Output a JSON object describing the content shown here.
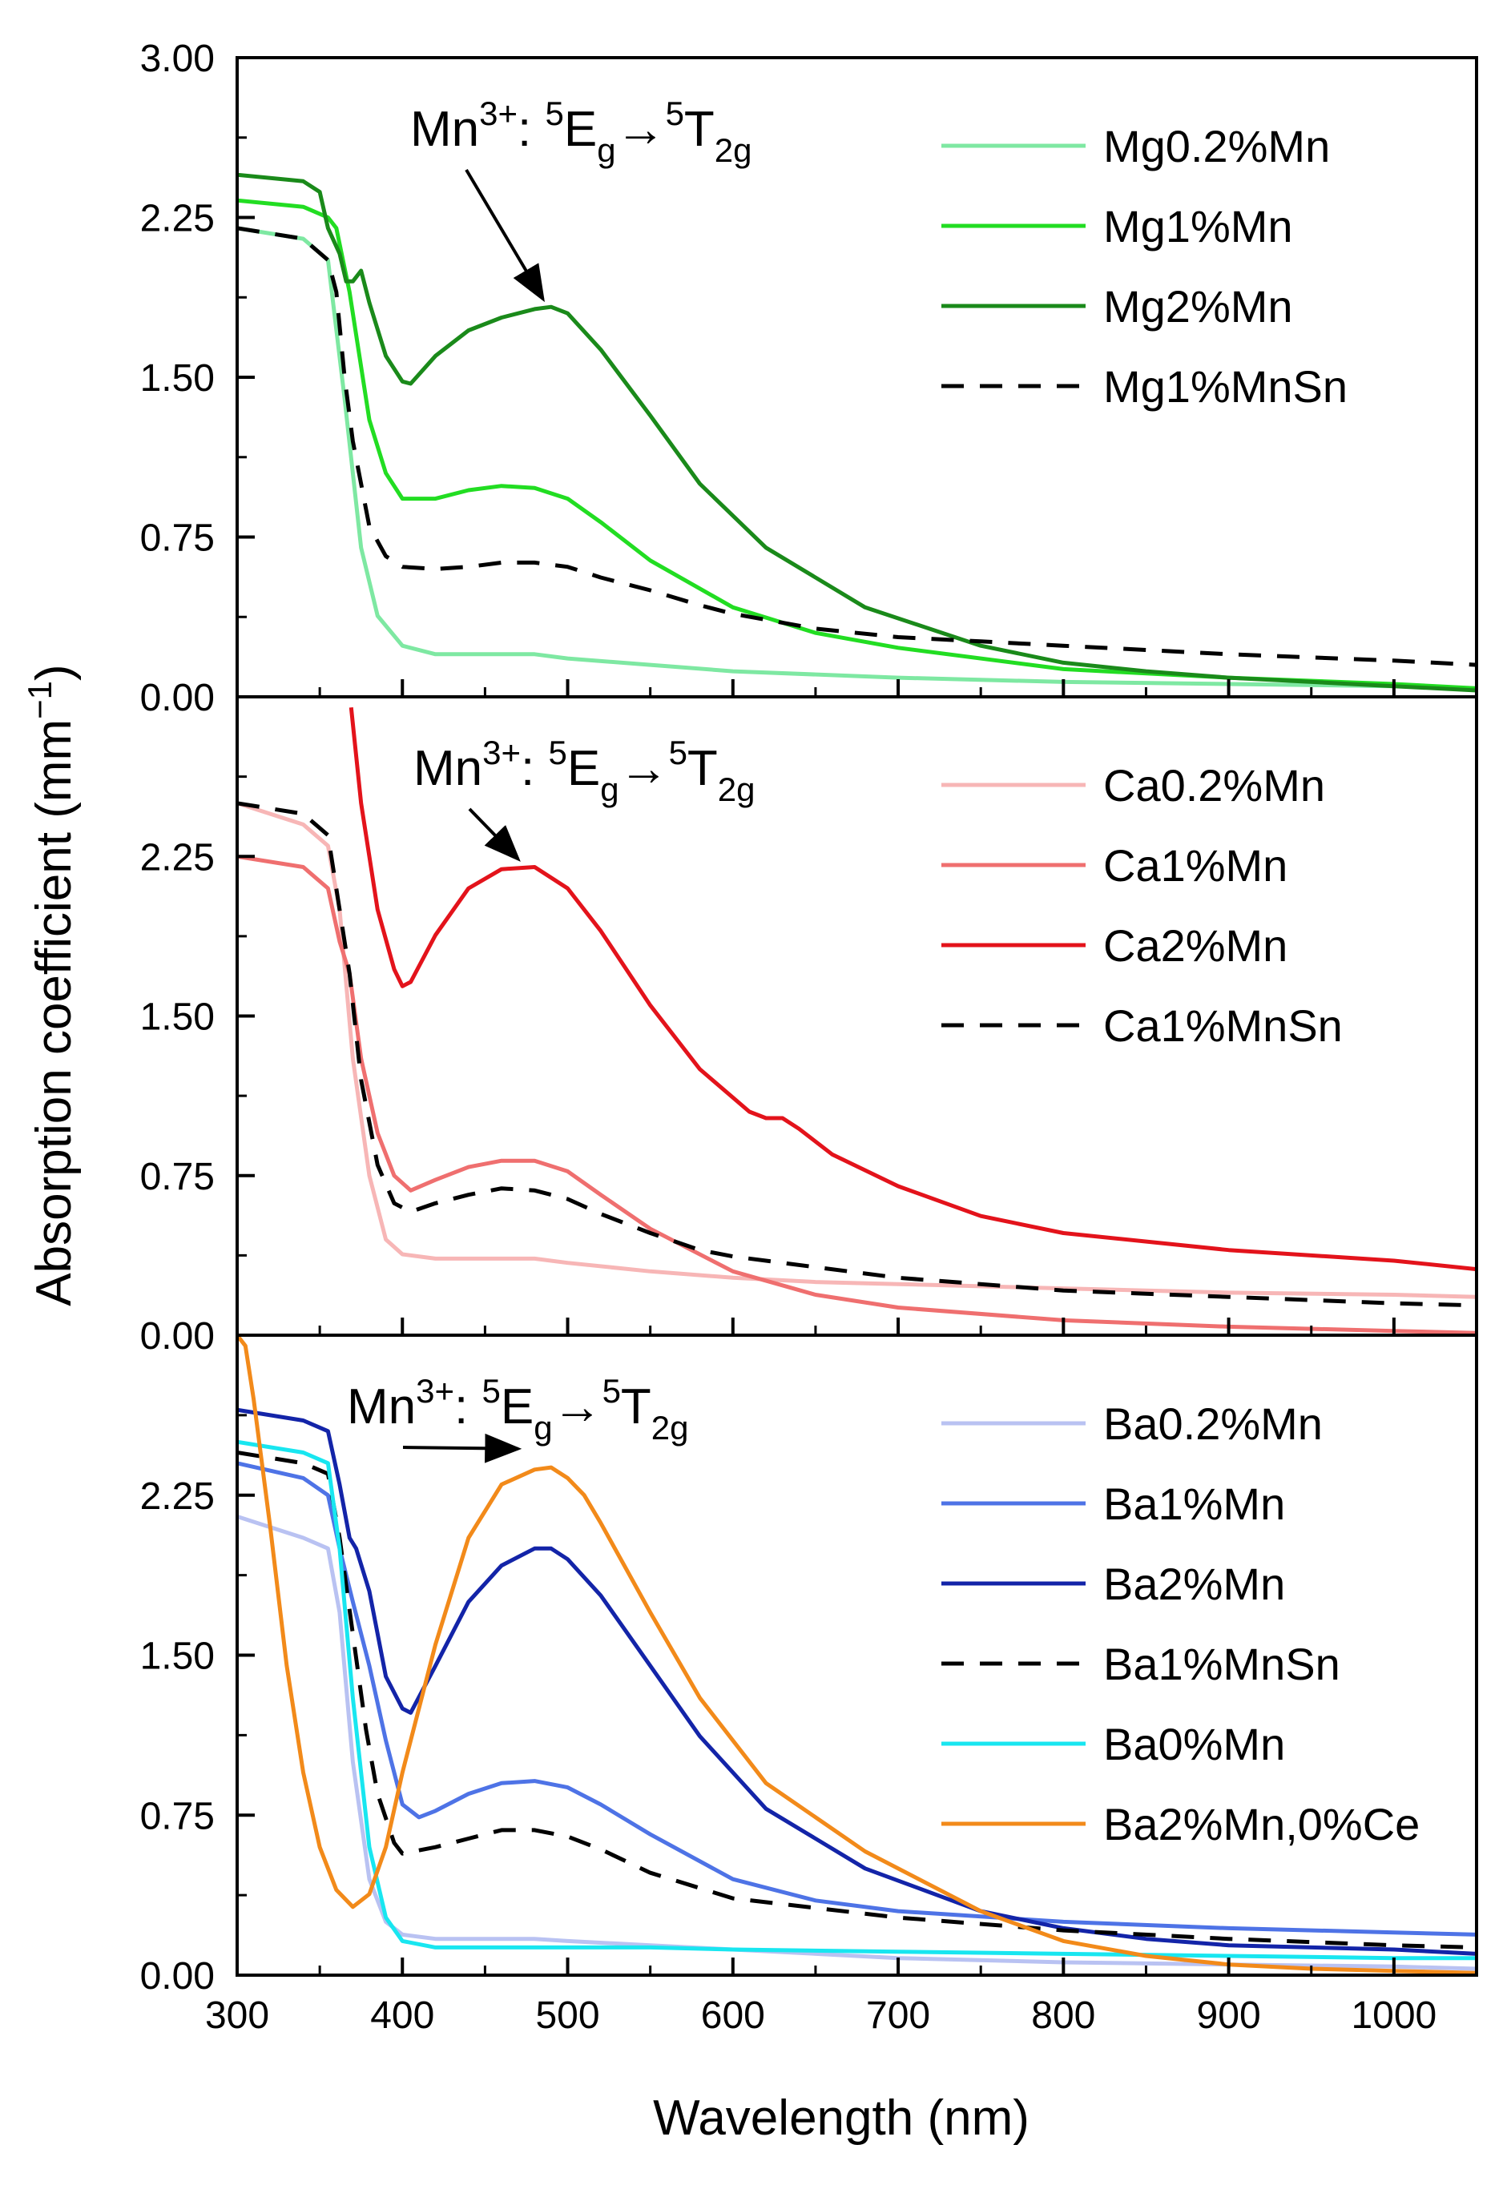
{
  "chart_data": {
    "type": "line",
    "xlabel": "Wavelength (nm)",
    "ylabel": "Absorption coefficient (mm",
    "ylabel_sup": "−1",
    "ylabel_close": ")",
    "xlim": [
      300,
      1050
    ],
    "x_ticks": [
      300,
      400,
      500,
      600,
      700,
      800,
      900,
      1000
    ],
    "x_tick_labels": [
      "300",
      "400",
      "500",
      "600",
      "700",
      "800",
      "900",
      "1000"
    ],
    "y_ticks": [
      0,
      0.75,
      1.5,
      2.25,
      3.0
    ],
    "annotation": {
      "prefix": "Mn",
      "charge": "3+",
      "colon": ": ",
      "state1_sup": "5",
      "state1": "E",
      "state1_sub": "g",
      "arrow": "→",
      "state2_sup": "5",
      "state2": "T",
      "state2_sub": "2g"
    },
    "panels": [
      {
        "id": "mg",
        "ylim": [
          0,
          3.0
        ],
        "y_tick_labels": [
          "0.00",
          "0.75",
          "1.50",
          "2.25",
          "3.00"
        ],
        "annotation_arrow_target": [
          485,
          1.83
        ],
        "series": [
          {
            "name": "Mg0.2%Mn",
            "color": "#7ee8a2",
            "dash": false,
            "x": [
              300,
              340,
              355,
              365,
              375,
              385,
              400,
              420,
              450,
              480,
              500,
              550,
              600,
              700,
              800,
              900,
              1000,
              1050
            ],
            "y": [
              2.2,
              2.15,
              2.05,
              1.4,
              0.7,
              0.38,
              0.24,
              0.2,
              0.2,
              0.2,
              0.18,
              0.15,
              0.12,
              0.09,
              0.07,
              0.06,
              0.05,
              0.04
            ]
          },
          {
            "name": "Mg1%Mn",
            "color": "#22dd22",
            "dash": false,
            "x": [
              300,
              340,
              355,
              360,
              368,
              372,
              380,
              390,
              400,
              420,
              440,
              460,
              480,
              500,
              520,
              550,
              600,
              650,
              700,
              800,
              900,
              1000,
              1050
            ],
            "y": [
              2.33,
              2.3,
              2.25,
              2.2,
              1.9,
              1.7,
              1.3,
              1.05,
              0.93,
              0.93,
              0.97,
              0.99,
              0.98,
              0.93,
              0.82,
              0.64,
              0.42,
              0.3,
              0.23,
              0.13,
              0.09,
              0.06,
              0.04
            ]
          },
          {
            "name": "Mg2%Mn",
            "color": "#1a8a1a",
            "dash": false,
            "x": [
              300,
              340,
              350,
              355,
              362,
              366,
              370,
              375,
              380,
              390,
              400,
              405,
              420,
              440,
              460,
              480,
              490,
              500,
              520,
              550,
              580,
              620,
              680,
              750,
              800,
              850,
              900,
              1000,
              1050
            ],
            "y": [
              2.45,
              2.42,
              2.37,
              2.2,
              2.08,
              1.95,
              1.95,
              2.0,
              1.85,
              1.6,
              1.48,
              1.47,
              1.6,
              1.72,
              1.78,
              1.82,
              1.83,
              1.8,
              1.63,
              1.32,
              1.0,
              0.7,
              0.42,
              0.24,
              0.16,
              0.12,
              0.09,
              0.05,
              0.03
            ]
          },
          {
            "name": "Mg1%MnSn",
            "color": "#000000",
            "dash": true,
            "x": [
              300,
              340,
              355,
              360,
              365,
              370,
              380,
              390,
              400,
              420,
              440,
              460,
              480,
              500,
              520,
              550,
              580,
              600,
              650,
              700,
              750,
              800,
              900,
              1000,
              1050
            ],
            "y": [
              2.2,
              2.15,
              2.05,
              1.9,
              1.5,
              1.2,
              0.8,
              0.66,
              0.61,
              0.6,
              0.61,
              0.63,
              0.63,
              0.61,
              0.56,
              0.5,
              0.43,
              0.39,
              0.32,
              0.28,
              0.26,
              0.24,
              0.2,
              0.17,
              0.15
            ]
          }
        ]
      },
      {
        "id": "ca",
        "ylim": [
          0,
          3.0
        ],
        "y_tick_labels": [
          "0.00",
          "0.75",
          "1.50",
          "2.25",
          ""
        ],
        "annotation_arrow_target": [
          470,
          2.2
        ],
        "series": [
          {
            "name": "Ca0.2%Mn",
            "color": "#f7b6b6",
            "dash": false,
            "x": [
              300,
              340,
              355,
              362,
              370,
              380,
              390,
              400,
              420,
              450,
              480,
              500,
              550,
              600,
              650,
              700,
              800,
              900,
              1000,
              1050
            ],
            "y": [
              2.5,
              2.4,
              2.3,
              2.0,
              1.3,
              0.75,
              0.45,
              0.38,
              0.36,
              0.36,
              0.36,
              0.34,
              0.3,
              0.27,
              0.25,
              0.24,
              0.22,
              0.2,
              0.19,
              0.18
            ]
          },
          {
            "name": "Ca1%Mn",
            "color": "#ef6f6f",
            "dash": false,
            "x": [
              300,
              340,
              355,
              362,
              368,
              375,
              385,
              395,
              405,
              420,
              440,
              460,
              480,
              500,
              520,
              550,
              600,
              650,
              700,
              800,
              900,
              1000,
              1050
            ],
            "y": [
              2.25,
              2.2,
              2.1,
              1.85,
              1.7,
              1.3,
              0.95,
              0.75,
              0.68,
              0.73,
              0.79,
              0.82,
              0.82,
              0.77,
              0.66,
              0.5,
              0.3,
              0.19,
              0.13,
              0.07,
              0.04,
              0.02,
              0.01
            ]
          },
          {
            "name": "Ca2%Mn",
            "color": "#e3131b",
            "dash": false,
            "x": [
              369,
              375,
              385,
              395,
              400,
              405,
              420,
              440,
              460,
              480,
              500,
              520,
              550,
              580,
              610,
              620,
              630,
              640,
              660,
              700,
              750,
              800,
              900,
              1000,
              1050
            ],
            "y": [
              2.95,
              2.5,
              2.0,
              1.72,
              1.64,
              1.66,
              1.88,
              2.1,
              2.19,
              2.2,
              2.1,
              1.9,
              1.55,
              1.25,
              1.05,
              1.02,
              1.02,
              0.97,
              0.85,
              0.7,
              0.56,
              0.48,
              0.4,
              0.35,
              0.31
            ]
          },
          {
            "name": "Ca1%MnSn",
            "color": "#000000",
            "dash": true,
            "x": [
              300,
              340,
              355,
              362,
              368,
              375,
              385,
              395,
              405,
              420,
              440,
              460,
              480,
              500,
              520,
              550,
              580,
              600,
              650,
              700,
              800,
              900,
              1000,
              1050
            ],
            "y": [
              2.5,
              2.45,
              2.35,
              2.0,
              1.7,
              1.2,
              0.8,
              0.62,
              0.58,
              0.62,
              0.66,
              0.69,
              0.68,
              0.64,
              0.57,
              0.48,
              0.4,
              0.37,
              0.32,
              0.27,
              0.21,
              0.18,
              0.15,
              0.14
            ]
          }
        ]
      },
      {
        "id": "ba",
        "ylim": [
          0,
          3.0
        ],
        "y_tick_labels": [
          "0.00",
          "0.75",
          "1.50",
          "2.25",
          ""
        ],
        "annotation_arrow_target": [
          470,
          2.43
        ],
        "series": [
          {
            "name": "Ba0.2%Mn",
            "color": "#b9c2f2",
            "dash": false,
            "x": [
              300,
              340,
              355,
              362,
              370,
              380,
              390,
              400,
              420,
              450,
              480,
              500,
              550,
              600,
              700,
              800,
              900,
              1000,
              1050
            ],
            "y": [
              2.15,
              2.05,
              2.0,
              1.7,
              1.0,
              0.45,
              0.25,
              0.19,
              0.17,
              0.17,
              0.17,
              0.16,
              0.14,
              0.12,
              0.08,
              0.06,
              0.05,
              0.04,
              0.03
            ]
          },
          {
            "name": "Ba1%Mn",
            "color": "#4e73e6",
            "dash": false,
            "x": [
              300,
              340,
              355,
              362,
              370,
              380,
              390,
              400,
              410,
              420,
              440,
              460,
              480,
              500,
              520,
              550,
              600,
              650,
              700,
              800,
              900,
              1000,
              1050
            ],
            "y": [
              2.4,
              2.33,
              2.25,
              2.0,
              1.75,
              1.45,
              1.1,
              0.8,
              0.74,
              0.77,
              0.85,
              0.9,
              0.91,
              0.88,
              0.8,
              0.66,
              0.45,
              0.35,
              0.3,
              0.25,
              0.22,
              0.2,
              0.19
            ]
          },
          {
            "name": "Ba2%Mn",
            "color": "#1324a8",
            "dash": false,
            "x": [
              300,
              340,
              355,
              362,
              368,
              372,
              380,
              390,
              400,
              405,
              420,
              440,
              460,
              480,
              490,
              500,
              520,
              550,
              580,
              620,
              680,
              750,
              800,
              850,
              900,
              1000,
              1050
            ],
            "y": [
              2.65,
              2.6,
              2.55,
              2.3,
              2.05,
              2.0,
              1.8,
              1.4,
              1.25,
              1.23,
              1.45,
              1.75,
              1.92,
              2.0,
              2.0,
              1.95,
              1.78,
              1.45,
              1.12,
              0.78,
              0.5,
              0.3,
              0.22,
              0.17,
              0.14,
              0.12,
              0.1
            ]
          },
          {
            "name": "Ba1%MnSn",
            "color": "#000000",
            "dash": true,
            "x": [
              300,
              340,
              355,
              362,
              370,
              378,
              385,
              395,
              400,
              420,
              440,
              460,
              480,
              500,
              520,
              550,
              600,
              700,
              800,
              900,
              1000,
              1050
            ],
            "y": [
              2.45,
              2.4,
              2.35,
              2.05,
              1.6,
              1.15,
              0.85,
              0.62,
              0.57,
              0.6,
              0.64,
              0.68,
              0.68,
              0.65,
              0.59,
              0.48,
              0.36,
              0.27,
              0.21,
              0.17,
              0.14,
              0.13
            ]
          },
          {
            "name": "Ba0%Mn",
            "color": "#18e6f0",
            "dash": false,
            "x": [
              300,
              340,
              355,
              362,
              370,
              380,
              390,
              400,
              420,
              450,
              500,
              550,
              600,
              700,
              800,
              900,
              1000,
              1050
            ],
            "y": [
              2.5,
              2.45,
              2.4,
              2.0,
              1.3,
              0.6,
              0.27,
              0.16,
              0.13,
              0.13,
              0.13,
              0.13,
              0.12,
              0.11,
              0.1,
              0.09,
              0.08,
              0.08
            ]
          },
          {
            "name": "Ba2%Mn,0%Ce",
            "color": "#f28a1a",
            "dash": false,
            "x": [
              300,
              305,
              310,
              320,
              330,
              340,
              350,
              360,
              370,
              380,
              390,
              400,
              420,
              440,
              460,
              480,
              490,
              500,
              510,
              520,
              550,
              580,
              620,
              680,
              750,
              800,
              850,
              900,
              950,
              1000,
              1050
            ],
            "y": [
              3.0,
              2.95,
              2.7,
              2.1,
              1.45,
              0.95,
              0.6,
              0.4,
              0.32,
              0.38,
              0.6,
              0.95,
              1.55,
              2.05,
              2.3,
              2.37,
              2.38,
              2.33,
              2.25,
              2.12,
              1.7,
              1.3,
              0.9,
              0.58,
              0.3,
              0.16,
              0.09,
              0.05,
              0.03,
              0.02,
              0.01
            ]
          }
        ]
      }
    ]
  }
}
